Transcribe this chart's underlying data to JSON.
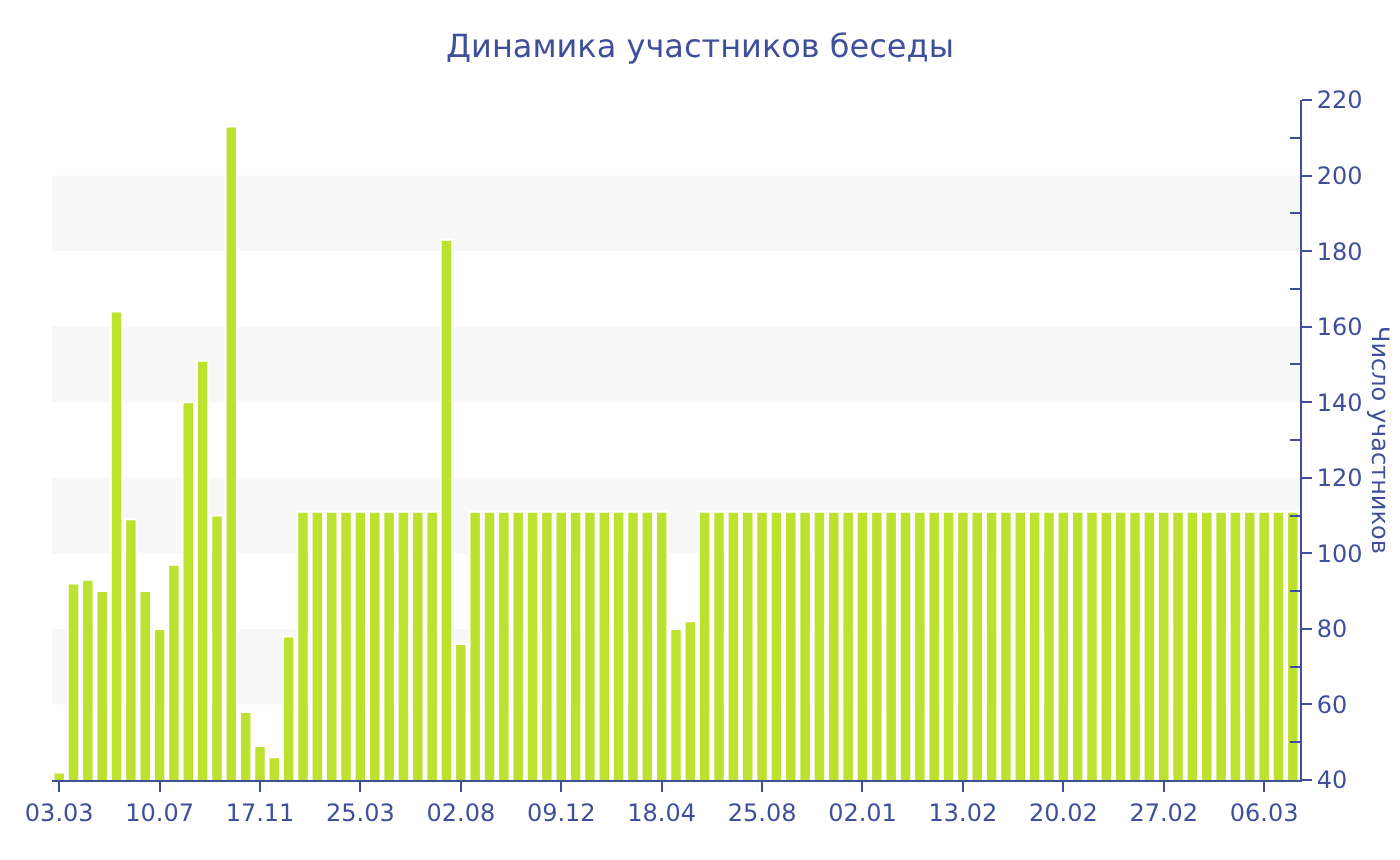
{
  "chart_data": {
    "type": "bar",
    "title": "Динамика участников беседы",
    "ylabel": "Число участников",
    "categories": [
      "03.03",
      null,
      null,
      null,
      null,
      null,
      null,
      "10.07",
      null,
      null,
      null,
      null,
      null,
      null,
      "17.11",
      null,
      null,
      null,
      null,
      null,
      null,
      "25.03",
      null,
      null,
      null,
      null,
      null,
      null,
      "02.08",
      null,
      null,
      null,
      null,
      null,
      null,
      "09.12",
      null,
      null,
      null,
      null,
      null,
      null,
      "18.04",
      null,
      null,
      null,
      null,
      null,
      null,
      "25.08",
      null,
      null,
      null,
      null,
      null,
      null,
      "02.01",
      null,
      null,
      null,
      null,
      null,
      null,
      "13.02",
      null,
      null,
      null,
      null,
      null,
      null,
      "20.02",
      null,
      null,
      null,
      null,
      null,
      null,
      "27.02",
      null,
      null,
      null,
      null,
      null,
      null,
      "06.03",
      null,
      null
    ],
    "values": [
      42,
      92,
      93,
      90,
      164,
      109,
      90,
      80,
      97,
      140,
      151,
      110,
      213,
      58,
      49,
      46,
      78,
      111,
      111,
      111,
      111,
      111,
      111,
      111,
      111,
      111,
      111,
      183,
      76,
      111,
      111,
      111,
      111,
      111,
      111,
      111,
      111,
      111,
      111,
      111,
      111,
      111,
      111,
      80,
      82,
      111,
      111,
      111,
      111,
      111,
      111,
      111,
      111,
      111,
      111,
      111,
      111,
      111,
      111,
      111,
      111,
      111,
      111,
      111,
      111,
      111,
      111,
      111,
      111,
      111,
      111,
      111,
      111,
      111,
      111,
      111,
      111,
      111,
      111,
      111,
      111,
      111,
      111,
      111,
      111,
      111,
      111
    ],
    "color": "#bde12f",
    "ylim": [
      40,
      220
    ],
    "yticks": [
      40,
      {
        "value": 50,
        "label": null
      },
      60,
      {
        "value": 70,
        "label": null
      },
      80,
      {
        "value": 90,
        "label": null
      },
      100,
      {
        "value": 110,
        "label": null
      },
      120,
      {
        "value": 130,
        "label": null
      },
      140,
      {
        "value": 150,
        "label": null
      },
      160,
      {
        "value": 170,
        "label": null
      },
      180,
      {
        "value": 190,
        "label": null
      },
      200,
      {
        "value": 210,
        "label": null
      },
      220
    ],
    "grid": false,
    "bands": [
      {
        "axis": "y",
        "from": 60,
        "to": 80,
        "color": "#f7f7f7"
      },
      {
        "axis": "y",
        "from": 100,
        "to": 120,
        "color": "#f7f7f7"
      },
      {
        "axis": "y",
        "from": 140,
        "to": 160,
        "color": "#f7f7f7"
      },
      {
        "axis": "y",
        "from": 180,
        "to": 200,
        "color": "#f7f7f7"
      }
    ]
  }
}
